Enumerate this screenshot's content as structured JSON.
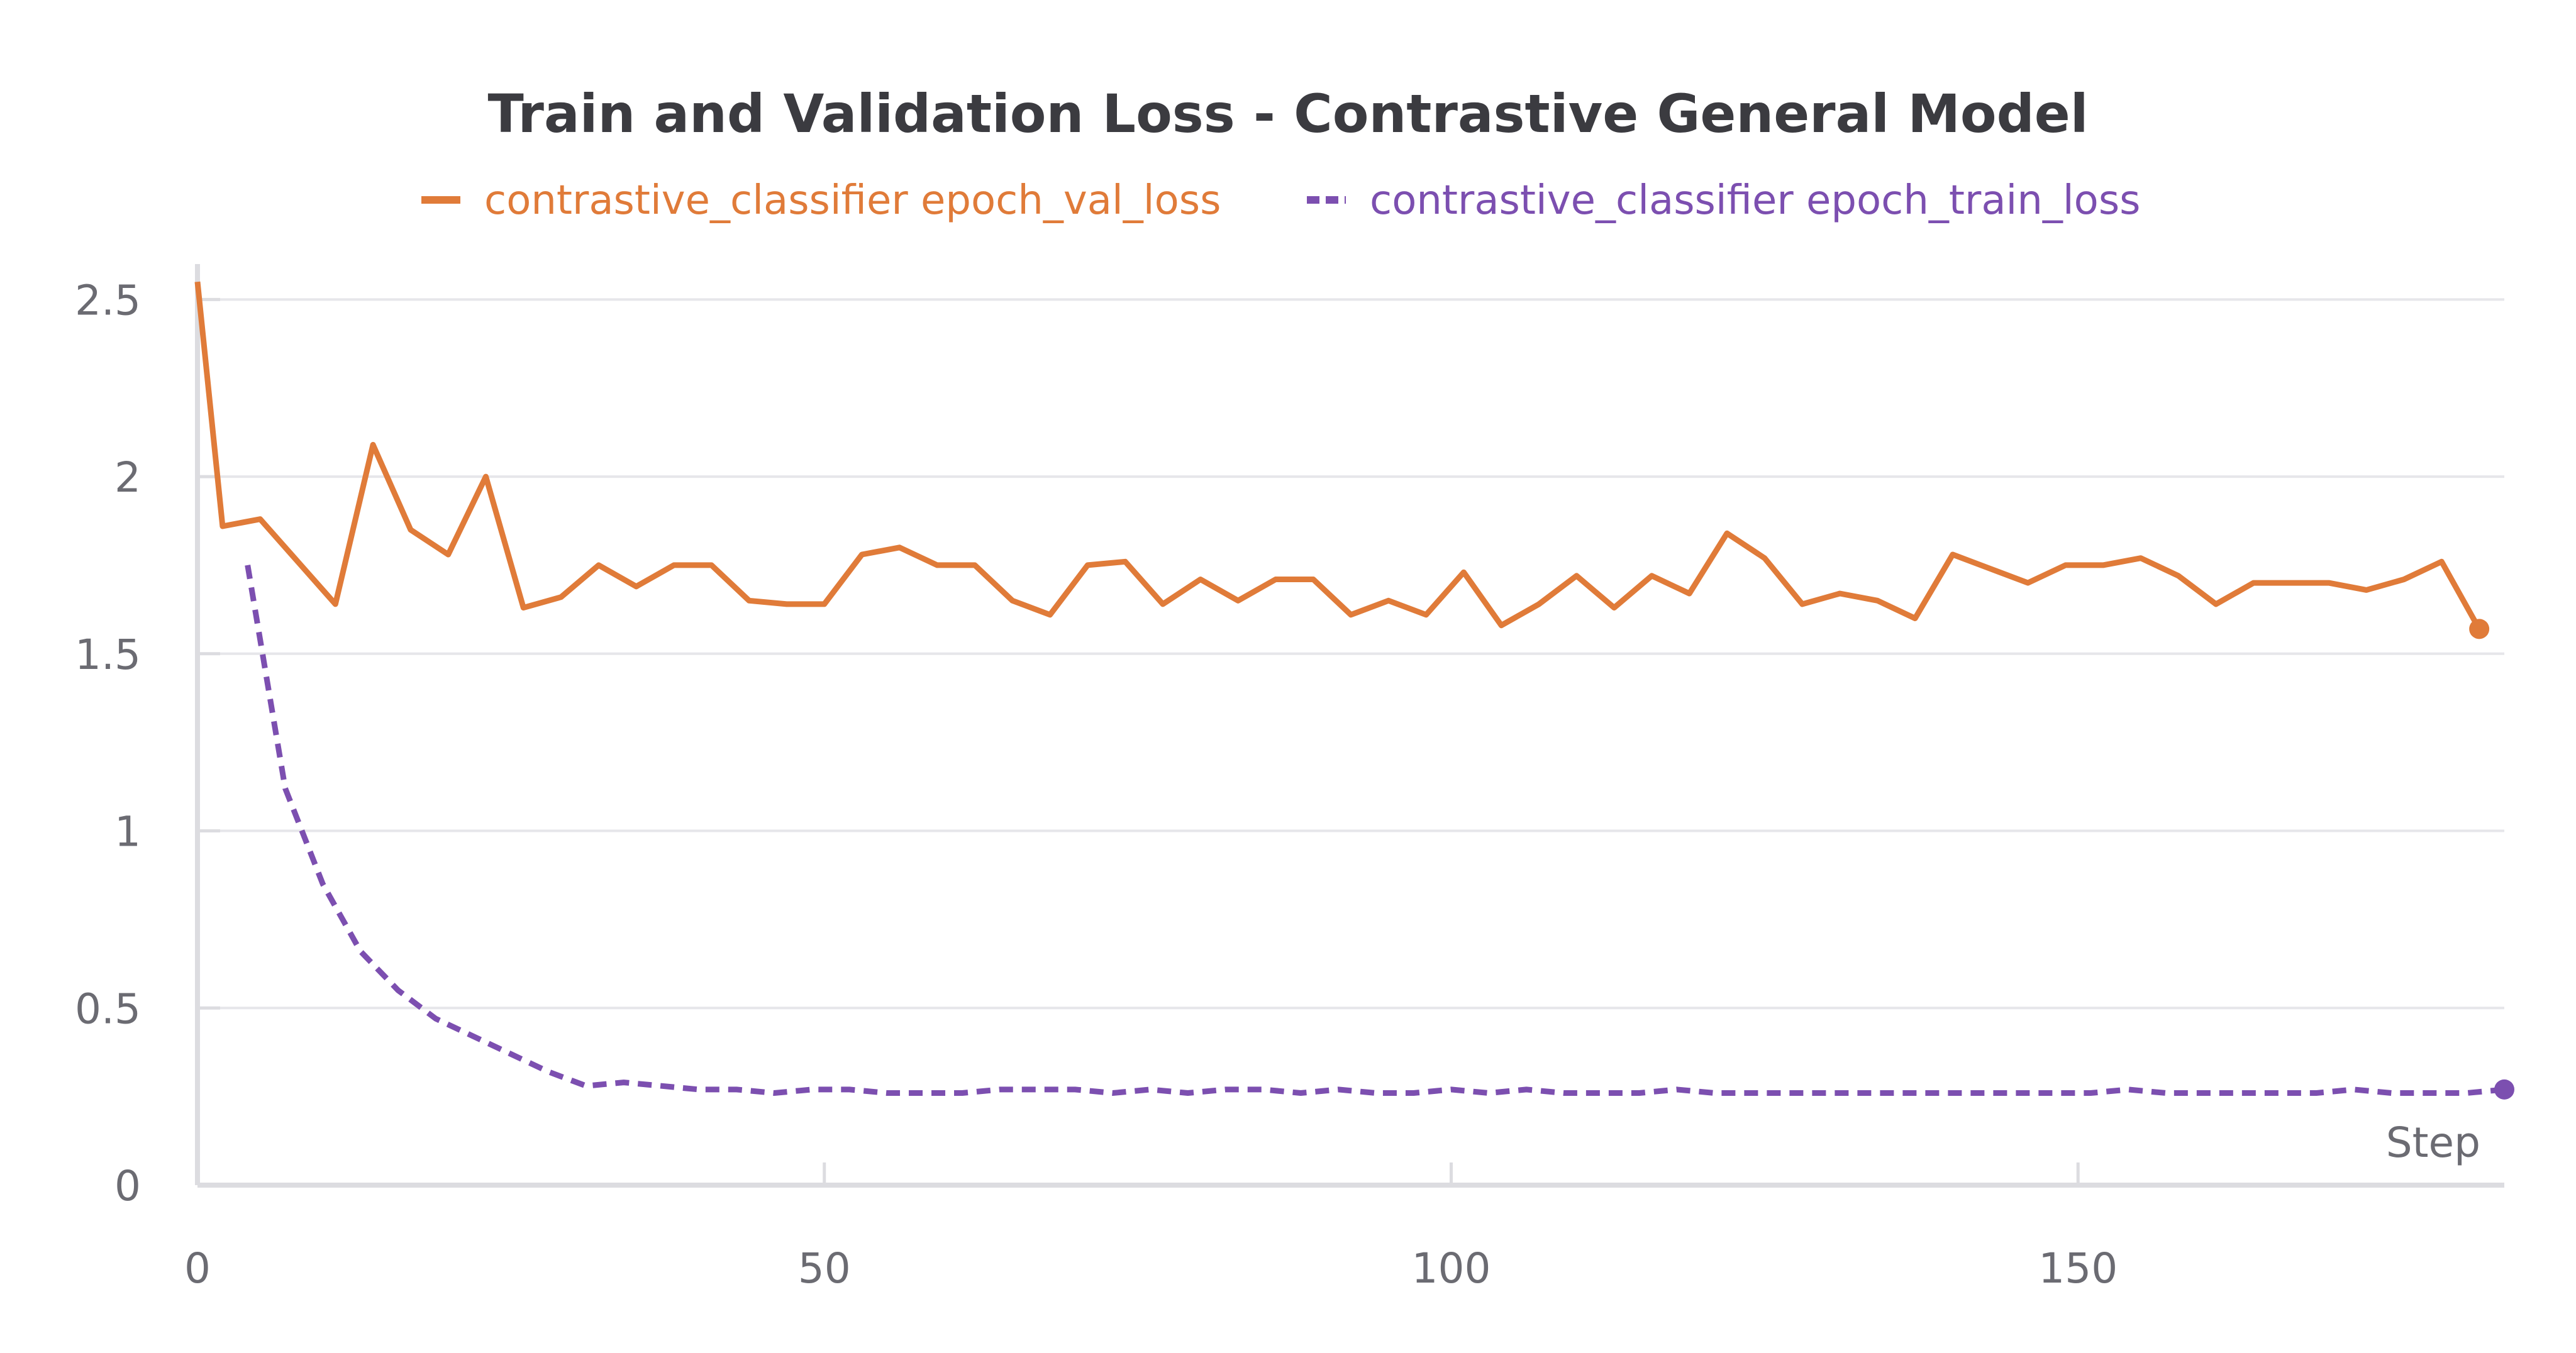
{
  "chart_data": {
    "type": "line",
    "title": "Train and Validation Loss - Contrastive General Model",
    "xlabel": "Step",
    "ylabel": "",
    "xlim": [
      0,
      184
    ],
    "ylim": [
      0,
      2.6
    ],
    "x_ticks": [
      "0",
      "50",
      "100",
      "150"
    ],
    "y_ticks": [
      "0",
      "0.5",
      "1",
      "1.5",
      "2",
      "2.5"
    ],
    "grid": true,
    "legend_position": "top",
    "series": [
      {
        "name": "contrastive_classifier epoch_val_loss",
        "color": "#e07b39",
        "style": "solid",
        "x": [
          0,
          2,
          5,
          8,
          11,
          14,
          17,
          20,
          23,
          26,
          29,
          32,
          35,
          38,
          41,
          44,
          47,
          50,
          53,
          56,
          59,
          62,
          65,
          68,
          71,
          74,
          77,
          80,
          83,
          86,
          89,
          92,
          95,
          98,
          101,
          104,
          107,
          110,
          113,
          116,
          119,
          122,
          125,
          128,
          131,
          134,
          137,
          140,
          143,
          146,
          149,
          152,
          155,
          158,
          161,
          164,
          167,
          170,
          173,
          176,
          179,
          182
        ],
        "values": [
          2.55,
          1.86,
          1.88,
          1.76,
          1.64,
          2.09,
          1.85,
          1.78,
          2.0,
          1.63,
          1.66,
          1.75,
          1.69,
          1.75,
          1.75,
          1.65,
          1.64,
          1.64,
          1.78,
          1.8,
          1.75,
          1.75,
          1.65,
          1.61,
          1.75,
          1.76,
          1.64,
          1.71,
          1.65,
          1.71,
          1.71,
          1.61,
          1.65,
          1.61,
          1.73,
          1.58,
          1.64,
          1.72,
          1.63,
          1.72,
          1.67,
          1.84,
          1.77,
          1.64,
          1.67,
          1.65,
          1.6,
          1.78,
          1.74,
          1.7,
          1.75,
          1.75,
          1.77,
          1.72,
          1.64,
          1.7,
          1.7,
          1.7,
          1.68,
          1.71,
          1.76,
          1.57
        ]
      },
      {
        "name": "contrastive_classifier epoch_train_loss",
        "color": "#7c4fb0",
        "style": "dashed",
        "x": [
          4,
          7,
          10,
          13,
          16,
          19,
          22,
          25,
          28,
          31,
          34,
          37,
          40,
          43,
          46,
          49,
          52,
          55,
          58,
          61,
          64,
          67,
          70,
          73,
          76,
          79,
          82,
          85,
          88,
          91,
          94,
          97,
          100,
          103,
          106,
          109,
          112,
          115,
          118,
          121,
          124,
          127,
          130,
          133,
          136,
          139,
          142,
          145,
          148,
          151,
          154,
          157,
          160,
          163,
          166,
          169,
          172,
          175,
          178,
          181,
          184
        ],
        "values": [
          1.75,
          1.12,
          0.85,
          0.66,
          0.55,
          0.47,
          0.42,
          0.37,
          0.32,
          0.28,
          0.29,
          0.28,
          0.27,
          0.27,
          0.26,
          0.27,
          0.27,
          0.26,
          0.26,
          0.26,
          0.27,
          0.27,
          0.27,
          0.26,
          0.27,
          0.26,
          0.27,
          0.27,
          0.26,
          0.27,
          0.26,
          0.26,
          0.27,
          0.26,
          0.27,
          0.26,
          0.26,
          0.26,
          0.27,
          0.26,
          0.26,
          0.26,
          0.26,
          0.26,
          0.26,
          0.26,
          0.26,
          0.26,
          0.26,
          0.26,
          0.27,
          0.26,
          0.26,
          0.26,
          0.26,
          0.26,
          0.27,
          0.26,
          0.26,
          0.26,
          0.27
        ]
      }
    ]
  }
}
